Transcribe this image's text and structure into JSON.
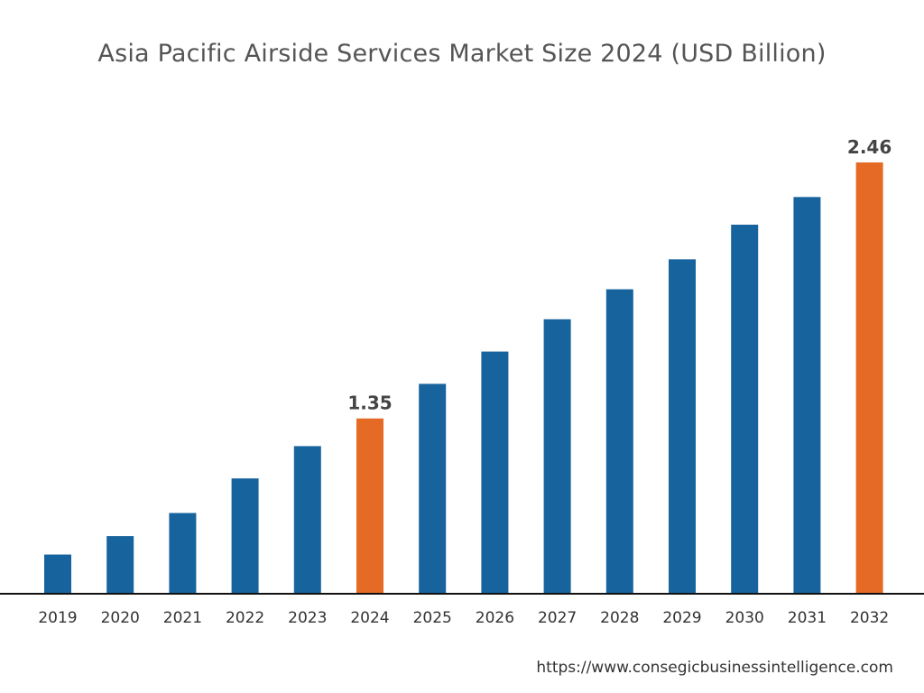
{
  "chart_data": {
    "type": "bar",
    "title": "Asia Pacific Airside Services Market Size 2024 (USD Billion)",
    "xlabel": "",
    "ylabel": "",
    "categories": [
      "2019",
      "2020",
      "2021",
      "2022",
      "2023",
      "2024",
      "2025",
      "2026",
      "2027",
      "2028",
      "2029",
      "2030",
      "2031",
      "2032"
    ],
    "values": [
      0.76,
      0.84,
      0.94,
      1.09,
      1.23,
      1.35,
      1.5,
      1.64,
      1.78,
      1.91,
      2.04,
      2.19,
      2.31,
      2.46
    ],
    "data_labels": {
      "2024": "1.35",
      "2032": "2.46"
    },
    "highlighted": [
      "2024",
      "2032"
    ],
    "ylim": [
      0.59,
      2.6
    ],
    "grid": false,
    "colors": {
      "default": "#17639d",
      "highlight": "#e56a26",
      "axis": "#111111"
    }
  },
  "source": "https://www.consegicbusinessintelligence.com"
}
